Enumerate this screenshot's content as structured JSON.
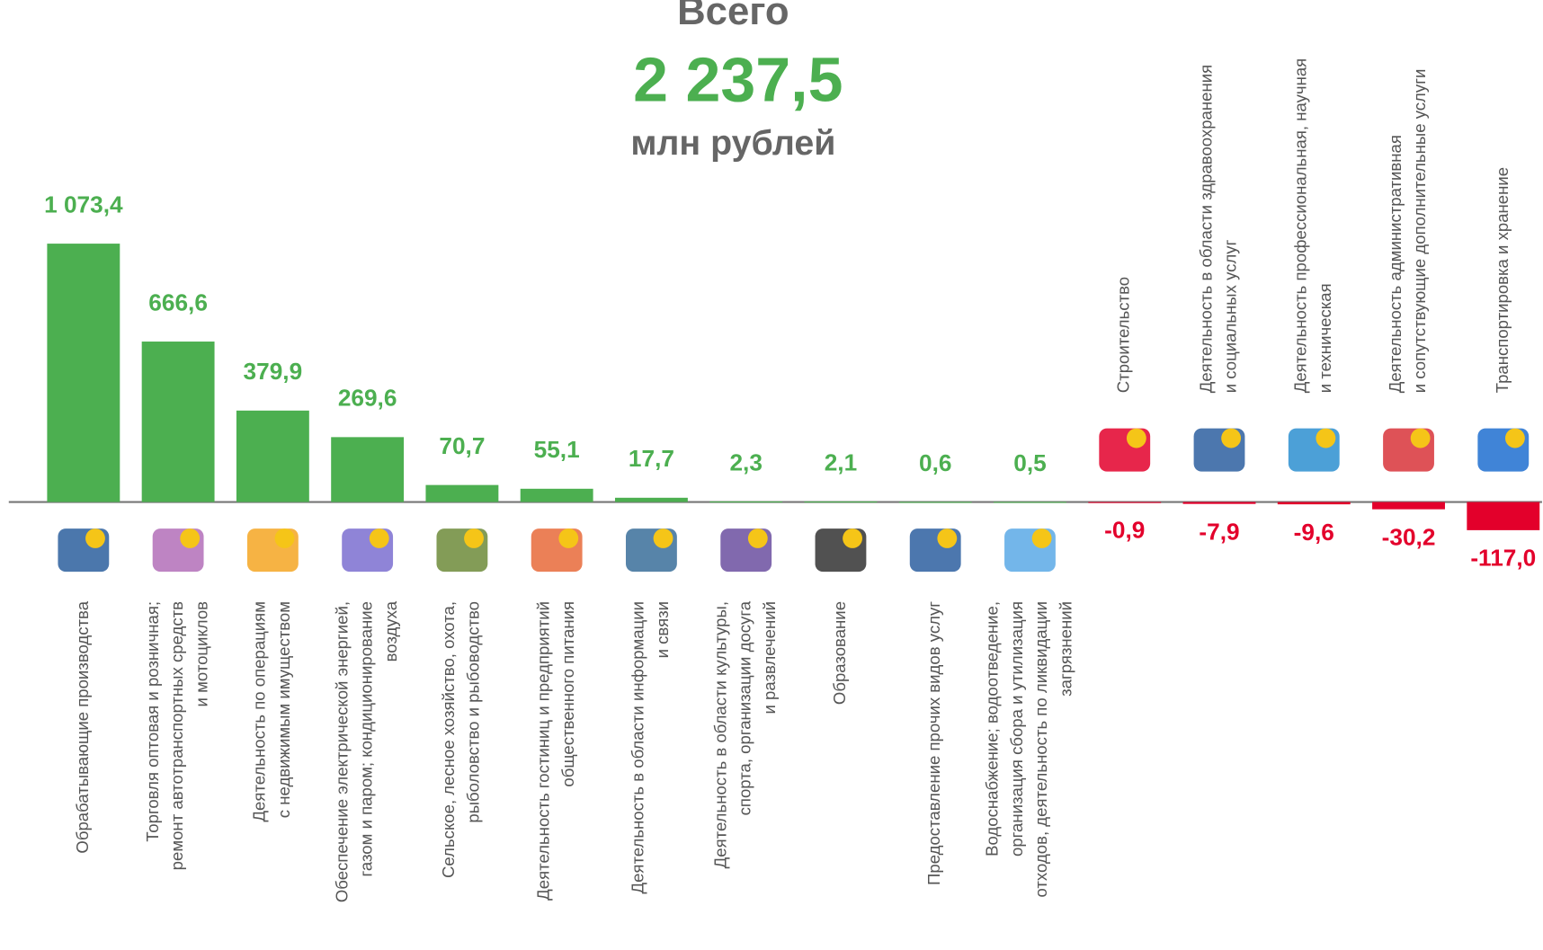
{
  "chart_data": {
    "type": "bar",
    "title": "Всего",
    "total": "2 237,5",
    "unit": "млн рублей",
    "categories": [
      "Обрабатывающие производства",
      "Торговля оптовая и розничная;\nремонт автотранспортных средств\nи мотоциклов",
      "Деятельность по операциям\nс недвижимым имуществом",
      "Обеспечение электрической энергией,\nгазом и паром; кондиционирование\nвоздуха",
      "Сельское, лесное хозяйство, охота,\nрыболовство и рыбоводство",
      "Деятельность гостиниц и предприятий\nобщественного питания",
      "Деятельность в области информации\nи связи",
      "Деятельность в  области культуры,\nспорта, организации досуга\nи развлечений",
      "Образование",
      "Предоставление прочих видов услуг",
      "Водоснабжение; водоотведение,\nорганизация сбора  и утилизация\nотходов, деятельность по ликвидации\nзагрязнений",
      "Строительство",
      "Деятельность в области здравоохранения\nи социальных услуг",
      "Деятельность профессиональная, научная\nи техническая",
      "Деятельность административная\nи сопутствующие дополнительные услуги",
      "Транспортировка и хранение"
    ],
    "values": [
      1073.4,
      666.6,
      379.9,
      269.6,
      70.7,
      55.1,
      17.7,
      2.3,
      2.1,
      0.6,
      0.5,
      -0.9,
      -7.9,
      -9.6,
      -30.2,
      -117.0
    ],
    "value_labels": [
      "1 073,4",
      "666,6",
      "379,9",
      "269,6",
      "70,7",
      "55,1",
      "17,7",
      "2,3",
      "2,1",
      "0,6",
      "0,5",
      "-0,9",
      "-7,9",
      "-9,6",
      "-30,2",
      "-117,0"
    ],
    "positive_color": "#4caf50",
    "negative_color": "#e3002b"
  }
}
